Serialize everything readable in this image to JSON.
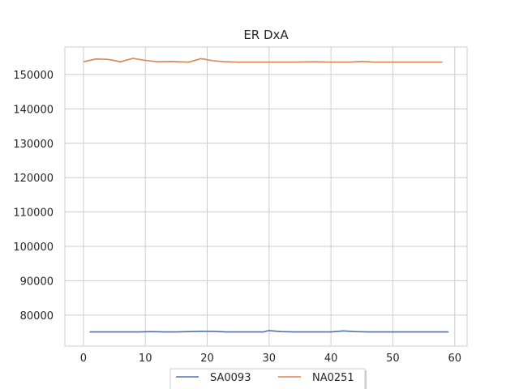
{
  "chart_data": {
    "type": "line",
    "title": "ER DxA",
    "xlabel": "",
    "ylabel": "",
    "xlim": [
      -3,
      62
    ],
    "ylim": [
      71000,
      158000
    ],
    "xticks": [
      0,
      10,
      20,
      30,
      40,
      50,
      60
    ],
    "yticks": [
      80000,
      90000,
      100000,
      110000,
      120000,
      130000,
      140000,
      150000
    ],
    "grid": true,
    "legend": "bottom-center",
    "series": [
      {
        "name": "SA0093",
        "color": "#4c72b0",
        "x": [
          1,
          4,
          7,
          9,
          11,
          13,
          15,
          17,
          19,
          21,
          23,
          25,
          27,
          29,
          30,
          32,
          34,
          36,
          38,
          40,
          42,
          44,
          46,
          48,
          50,
          52,
          54,
          56,
          59
        ],
        "y": [
          75100,
          75100,
          75100,
          75100,
          75200,
          75100,
          75100,
          75200,
          75300,
          75300,
          75100,
          75100,
          75100,
          75100,
          75500,
          75200,
          75100,
          75100,
          75100,
          75100,
          75400,
          75200,
          75100,
          75100,
          75100,
          75100,
          75100,
          75100,
          75100
        ]
      },
      {
        "name": "NA0251",
        "color": "#dd8452",
        "x": [
          0,
          2,
          4,
          6,
          8,
          10,
          12,
          14,
          17,
          19,
          21,
          23,
          25,
          28,
          31,
          34,
          37,
          40,
          43,
          45,
          47,
          50,
          53,
          56,
          58
        ],
        "y": [
          153700,
          154500,
          154400,
          153700,
          154700,
          154100,
          153700,
          153800,
          153600,
          154600,
          154000,
          153700,
          153600,
          153600,
          153600,
          153600,
          153700,
          153600,
          153600,
          153800,
          153600,
          153600,
          153600,
          153600,
          153600
        ]
      }
    ]
  }
}
